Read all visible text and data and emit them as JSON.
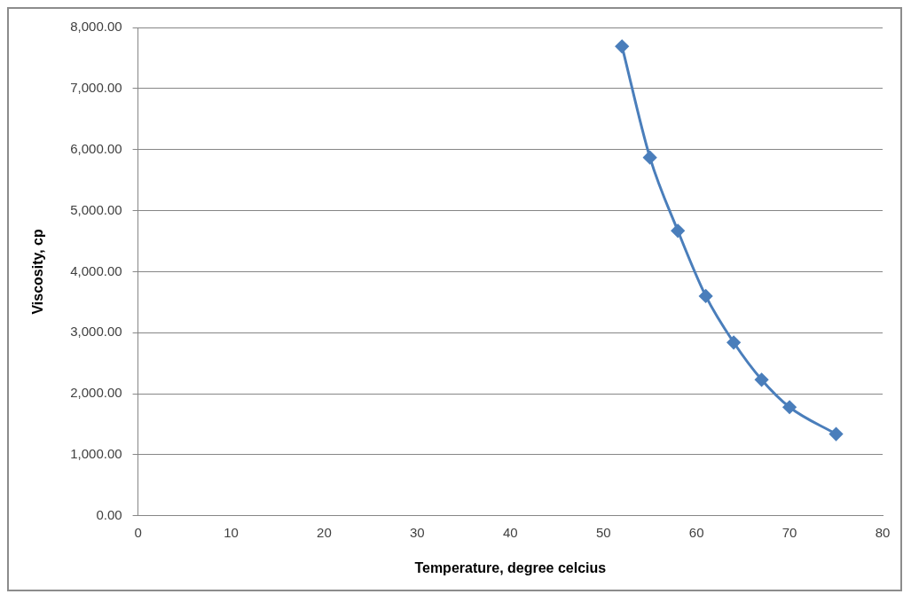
{
  "chart_data": {
    "type": "line",
    "xlabel": "Temperature, degree celcius",
    "ylabel": "Viscosity, cp",
    "x": [
      52,
      55,
      58,
      61,
      64,
      67,
      70,
      75
    ],
    "series": [
      {
        "color": "#4a7ebb",
        "values": [
          7690,
          5870,
          4670,
          3600,
          2840,
          2230,
          1780,
          1340
        ]
      }
    ],
    "xlim": [
      0,
      80
    ],
    "xticks": [
      0,
      10,
      20,
      30,
      40,
      50,
      60,
      70,
      80
    ],
    "ylim": [
      0,
      8000
    ],
    "yticks": [
      {
        "value": 0,
        "label": "0.00"
      },
      {
        "value": 1000,
        "label": "1,000.00"
      },
      {
        "value": 2000,
        "label": "2,000.00"
      },
      {
        "value": 3000,
        "label": "3,000.00"
      },
      {
        "value": 4000,
        "label": "4,000.00"
      },
      {
        "value": 5000,
        "label": "5,000.00"
      },
      {
        "value": 6000,
        "label": "6,000.00"
      },
      {
        "value": 7000,
        "label": "7,000.00"
      },
      {
        "value": 8000,
        "label": "8,000.00"
      }
    ],
    "grid": "y",
    "legend": false,
    "marker": "diamond",
    "line_style": "solid"
  }
}
